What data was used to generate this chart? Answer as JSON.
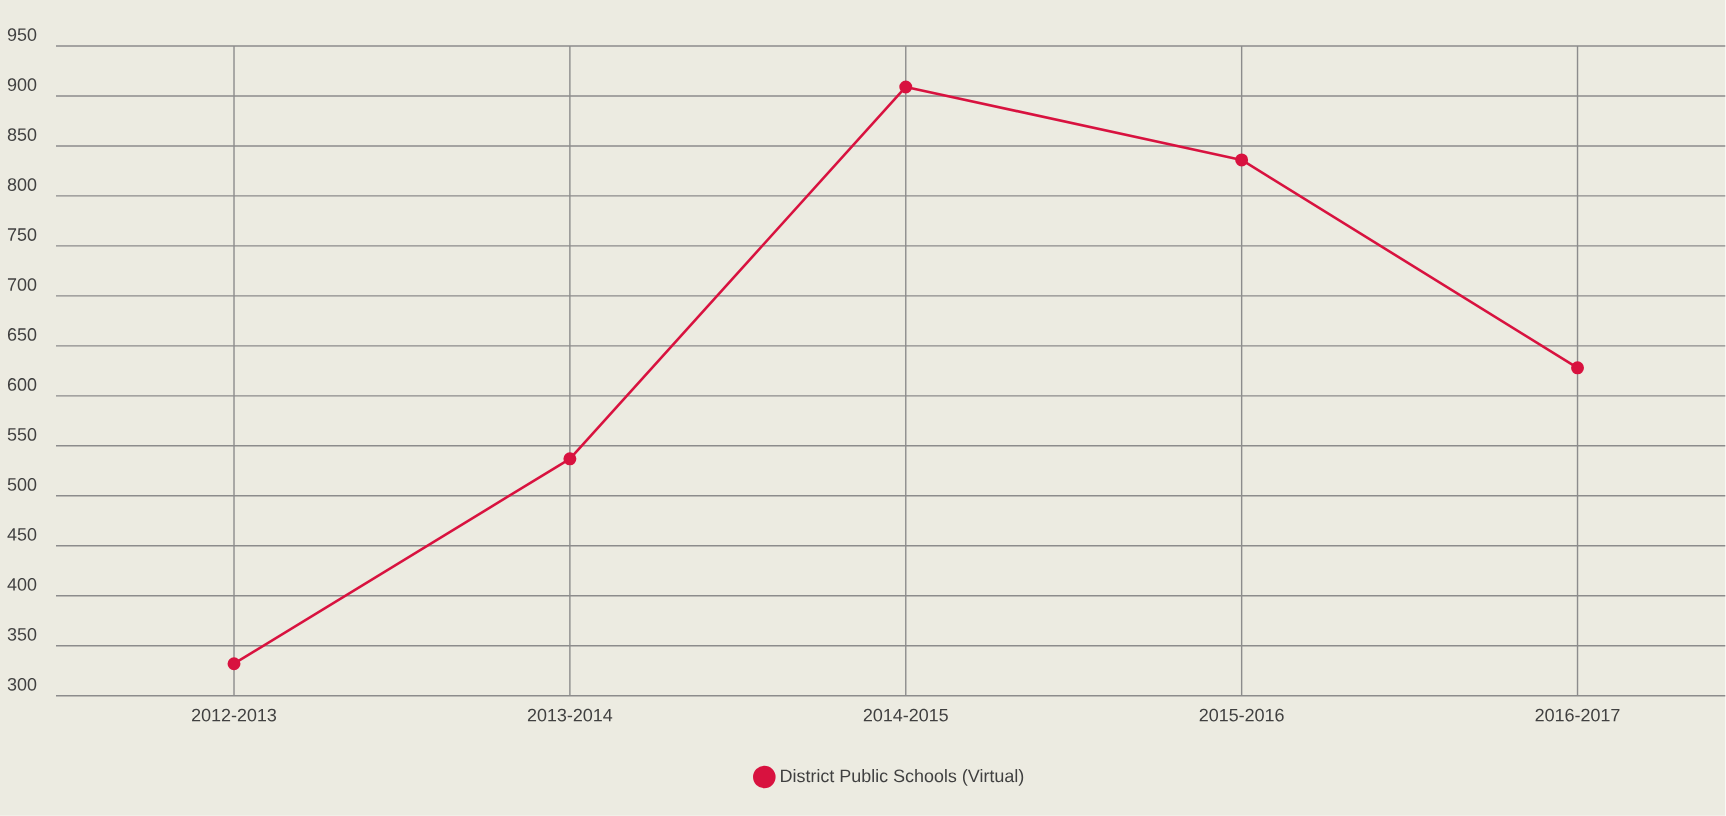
{
  "chart_data": {
    "type": "line",
    "categories": [
      "2012-2013",
      "2013-2014",
      "2014-2015",
      "2015-2016",
      "2016-2017"
    ],
    "series": [
      {
        "name": "District Public Schools (Virtual)",
        "color": "#d8123f",
        "values": [
          332,
          537,
          909,
          836,
          628
        ]
      }
    ],
    "ylim": [
      300,
      950
    ],
    "yticks": [
      300,
      350,
      400,
      450,
      500,
      550,
      600,
      650,
      700,
      750,
      800,
      850,
      900,
      950
    ],
    "grid": true,
    "legend": "bottom",
    "marker": "circle",
    "line_style": "solid"
  }
}
